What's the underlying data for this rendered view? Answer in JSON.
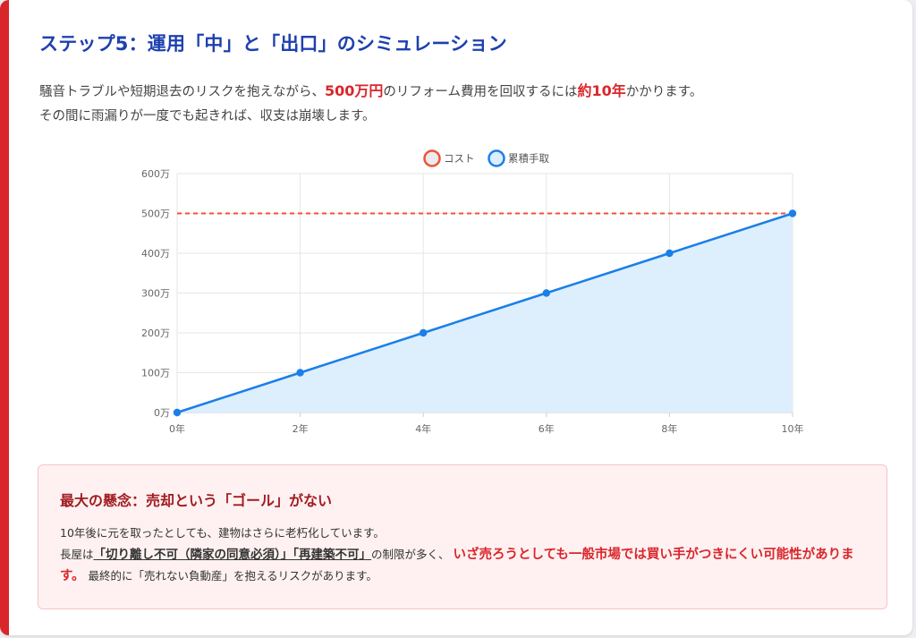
{
  "header": {
    "title": "ステップ5：運用「中」と「出口」のシミュレーション"
  },
  "intro": {
    "p1_a": "騒音トラブルや短期退去のリスクを抱えながら、",
    "p1_b": "500万円",
    "p1_c": "のリフォーム費用を回収するには",
    "p1_d": "約10年",
    "p1_e": "かかります。",
    "p2": "その間に雨漏りが一度でも起きれば、収支は崩壊します。"
  },
  "chart_data": {
    "type": "line",
    "x": [
      "0年",
      "2年",
      "4年",
      "6年",
      "8年",
      "10年"
    ],
    "xlabel": "",
    "ylabel": "",
    "ylim": [
      0,
      600
    ],
    "yticks": [
      "0万",
      "100万",
      "200万",
      "300万",
      "400万",
      "500万",
      "600万"
    ],
    "grid": true,
    "legend_position": "top-center",
    "series": [
      {
        "name": "コスト",
        "values": [
          500,
          500,
          500,
          500,
          500,
          500
        ],
        "color": "#f0523a",
        "style": "dashed"
      },
      {
        "name": "累積手取",
        "values": [
          0,
          100,
          200,
          300,
          400,
          500
        ],
        "color": "#1a7fe8",
        "fill": "#ddeefd",
        "style": "solid"
      }
    ]
  },
  "warning": {
    "title": "最大の懸念：売却という「ゴール」がない",
    "line1": "10年後に元を取ったとしても、建物はさらに老朽化しています。",
    "l2_a": "長屋は",
    "l2_b": "「切り離し不可（隣家の同意必須）」「再建築不可」",
    "l2_c": "の制限が多く、",
    "l2_d": "いざ売ろうとしても一般市場では買い手がつきにくい可能性があります。",
    "l2_e": "最終的に「売れない負動産」を抱えるリスクがあります。"
  }
}
